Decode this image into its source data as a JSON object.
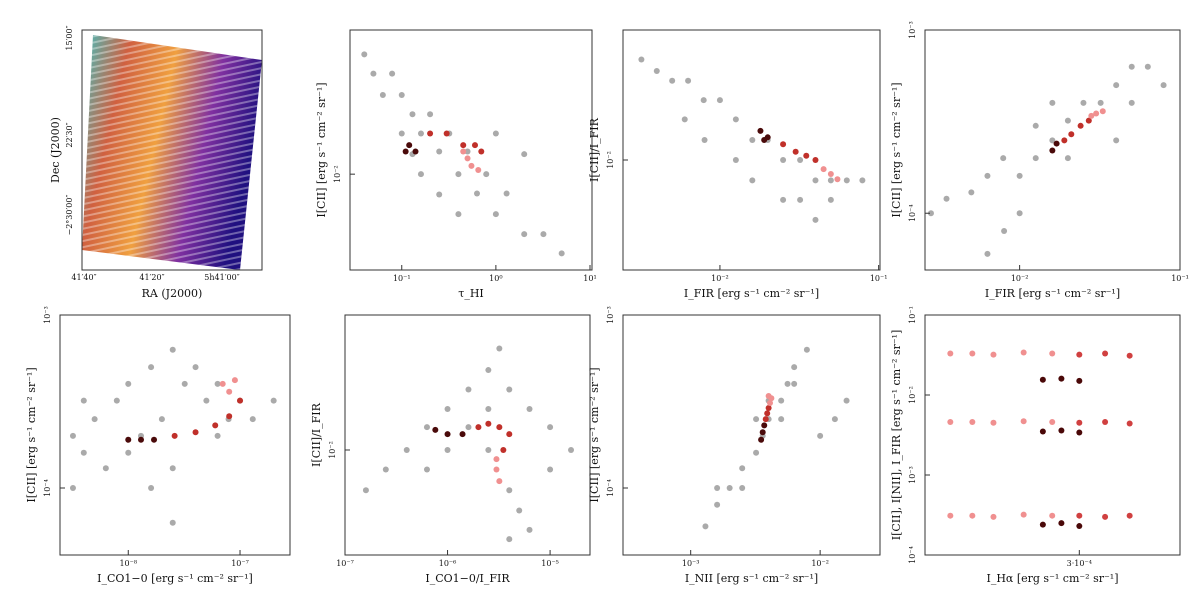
{
  "chart_data": [
    {
      "type": "image",
      "xlabel": "RA (J2000)",
      "ylabel": "Dec (J2000)",
      "xtick_labels": [
        "41′40″",
        "41′20″",
        "5h41′00″"
      ],
      "ytick_labels": [
        "15′00″",
        "22′30″",
        "−2°30′00″"
      ]
    },
    {
      "type": "scatter",
      "xlabel": "τ_HI",
      "ylabel": "I[CII] [erg s⁻¹ cm⁻² sr⁻¹]",
      "xscale": "log",
      "yscale": "log",
      "xlim": [
        0.0282,
        10.5
      ],
      "ylim": [
        0.0033,
        0.053
      ],
      "xticks": [
        {
          "value": 0.1,
          "label": "10⁻¹"
        },
        {
          "value": 1,
          "label": "10⁰"
        },
        {
          "value": 10,
          "label": "10¹"
        }
      ],
      "yticks": [
        {
          "value": 0.01,
          "label": "10⁻²"
        }
      ],
      "series": [
        {
          "color": "#aaaaaa",
          "x": [
            0.04,
            0.05,
            0.063,
            0.079,
            0.1,
            0.1,
            0.13,
            0.16,
            0.2,
            0.25,
            0.32,
            0.4,
            0.5,
            0.63,
            0.79,
            1,
            1.3,
            2,
            3.2,
            5,
            0.16,
            0.25,
            0.4,
            0.13,
            1,
            2
          ],
          "values": [
            0.04,
            0.032,
            0.025,
            0.032,
            0.025,
            0.016,
            0.02,
            0.016,
            0.02,
            0.013,
            0.016,
            0.01,
            0.013,
            0.008,
            0.01,
            0.0063,
            0.008,
            0.005,
            0.005,
            0.004,
            0.01,
            0.0079,
            0.0063,
            0.0126,
            0.016,
            0.0126
          ]
        },
        {
          "color": "#4a0a0a",
          "x": [
            0.11,
            0.12,
            0.14
          ],
          "values": [
            0.013,
            0.014,
            0.013
          ]
        },
        {
          "color": "#c0302a",
          "x": [
            0.2,
            0.3,
            0.45,
            0.6,
            0.7
          ],
          "values": [
            0.016,
            0.016,
            0.014,
            0.014,
            0.013
          ]
        },
        {
          "color": "#f09090",
          "x": [
            0.5,
            0.55,
            0.65,
            0.45
          ],
          "values": [
            0.012,
            0.011,
            0.0105,
            0.013
          ]
        }
      ]
    },
    {
      "type": "scatter",
      "xlabel": "I_FIR [erg s⁻¹ cm⁻² sr⁻¹]",
      "ylabel": "I[CII]/I_FIR",
      "xscale": "log",
      "yscale": "log",
      "xlim": [
        0.00245,
        0.102
      ],
      "ylim": [
        0.0028,
        0.045
      ],
      "xticks": [
        {
          "value": 0.01,
          "label": "10⁻²"
        },
        {
          "value": 0.1,
          "label": "10⁻¹"
        }
      ],
      "yticks": [
        {
          "value": 0.01,
          "label": "10⁻²"
        }
      ],
      "series": [
        {
          "color": "#aaaaaa",
          "x": [
            0.0032,
            0.004,
            0.005,
            0.0063,
            0.0079,
            0.01,
            0.0126,
            0.016,
            0.02,
            0.025,
            0.032,
            0.04,
            0.05,
            0.063,
            0.079,
            0.032,
            0.04,
            0.025,
            0.008,
            0.0126,
            0.016,
            0.006,
            0.05
          ],
          "values": [
            0.032,
            0.028,
            0.025,
            0.025,
            0.02,
            0.02,
            0.016,
            0.0126,
            0.0126,
            0.01,
            0.01,
            0.0079,
            0.0079,
            0.0079,
            0.0079,
            0.0063,
            0.005,
            0.0063,
            0.0126,
            0.01,
            0.0079,
            0.016,
            0.0063
          ]
        },
        {
          "color": "#4a0a0a",
          "x": [
            0.018,
            0.019,
            0.02
          ],
          "values": [
            0.014,
            0.0126,
            0.013
          ]
        },
        {
          "color": "#c0302a",
          "x": [
            0.025,
            0.03,
            0.035,
            0.04
          ],
          "values": [
            0.012,
            0.011,
            0.0105,
            0.01
          ]
        },
        {
          "color": "#f09090",
          "x": [
            0.045,
            0.05,
            0.055
          ],
          "values": [
            0.009,
            0.0085,
            0.008
          ]
        }
      ]
    },
    {
      "type": "scatter",
      "xlabel": "I_FIR [erg s⁻¹ cm⁻² sr⁻¹]",
      "ylabel": "I[CII] [erg s⁻¹ cm⁻² sr⁻¹]",
      "xscale": "log",
      "yscale": "log",
      "xlim": [
        0.00257,
        0.1
      ],
      "ylim": [
        4.9e-05,
        0.001
      ],
      "xticks": [
        {
          "value": 0.01,
          "label": "10⁻²"
        },
        {
          "value": 0.1,
          "label": "10⁻¹"
        }
      ],
      "yticks": [
        {
          "value": 0.001,
          "label": "10⁻³"
        },
        {
          "value": 0.0001,
          "label": "10⁻⁴"
        }
      ],
      "series": [
        {
          "color": "#aaaaaa",
          "x": [
            0.0028,
            0.0035,
            0.005,
            0.0063,
            0.0079,
            0.01,
            0.0126,
            0.016,
            0.02,
            0.025,
            0.032,
            0.04,
            0.05,
            0.063,
            0.079,
            0.008,
            0.01,
            0.0063,
            0.02,
            0.04,
            0.05,
            0.016,
            0.0126
          ],
          "values": [
            0.0001,
            0.00012,
            0.00013,
            0.00016,
            0.0002,
            0.00016,
            0.0002,
            0.00025,
            0.00032,
            0.0004,
            0.0004,
            0.0005,
            0.00063,
            0.00063,
            0.0005,
            8e-05,
            0.0001,
            6e-05,
            0.0002,
            0.00025,
            0.0004,
            0.0004,
            0.0003
          ]
        },
        {
          "color": "#4a0a0a",
          "x": [
            0.016,
            0.017
          ],
          "values": [
            0.00022,
            0.00024
          ]
        },
        {
          "color": "#c0302a",
          "x": [
            0.019,
            0.021,
            0.024,
            0.027
          ],
          "values": [
            0.00025,
            0.00027,
            0.0003,
            0.00032
          ]
        },
        {
          "color": "#f09090",
          "x": [
            0.03,
            0.033,
            0.028
          ],
          "values": [
            0.00035,
            0.00036,
            0.00034
          ]
        }
      ]
    },
    {
      "type": "scatter",
      "xlabel": "I_CO1−0 [erg s⁻¹ cm⁻² sr⁻¹]",
      "ylabel": "I[CII] [erg s⁻¹ cm⁻² sr⁻¹]",
      "xscale": "log",
      "yscale": "log",
      "xlim": [
        2.45e-09,
        2.8e-07
      ],
      "ylim": [
        4.1e-05,
        0.001
      ],
      "xticks": [
        {
          "value": 1e-08,
          "label": "10⁻⁸"
        },
        {
          "value": 1e-07,
          "label": "10⁻⁷"
        }
      ],
      "yticks": [
        {
          "value": 0.001,
          "label": "10⁻³"
        },
        {
          "value": 0.0001,
          "label": "10⁻⁴"
        }
      ],
      "series": [
        {
          "color": "#aaaaaa",
          "x": [
            3.2e-09,
            4e-09,
            5e-09,
            6.3e-09,
            7.9e-09,
            1e-08,
            1.3e-08,
            1.6e-08,
            2e-08,
            2.5e-08,
            3.2e-08,
            4e-08,
            5e-08,
            6.3e-08,
            7.9e-08,
            1e-07,
            1.3e-07,
            2e-07,
            2.5e-08,
            1.6e-08,
            2.5e-08,
            3.2e-09,
            1e-08,
            6.3e-08,
            4e-09
          ],
          "values": [
            0.0002,
            0.00016,
            0.00025,
            0.00013,
            0.00032,
            0.0004,
            0.0002,
            0.0005,
            0.00025,
            0.00063,
            0.0004,
            0.0005,
            0.00032,
            0.0004,
            0.00025,
            0.00032,
            0.00025,
            0.00032,
            0.00013,
            0.0001,
            6.3e-05,
            0.0001,
            0.00016,
            0.0002,
            0.00032
          ]
        },
        {
          "color": "#4a0a0a",
          "x": [
            1e-08,
            1.3e-08,
            1.7e-08
          ],
          "values": [
            0.00019,
            0.00019,
            0.00019
          ]
        },
        {
          "color": "#c0302a",
          "x": [
            2.6e-08,
            4e-08,
            6e-08,
            8e-08,
            1e-07
          ],
          "values": [
            0.0002,
            0.00021,
            0.00023,
            0.00026,
            0.00032
          ]
        },
        {
          "color": "#f09090",
          "x": [
            7e-08,
            8e-08,
            9e-08
          ],
          "values": [
            0.0004,
            0.00036,
            0.00042
          ]
        }
      ]
    },
    {
      "type": "scatter",
      "xlabel": "I_CO1−0/I_FIR",
      "ylabel": "I[CII]/I_FIR",
      "xscale": "log",
      "yscale": "log",
      "xlim": [
        1e-07,
        2.45e-05
      ],
      "ylim": [
        0.003,
        0.047
      ],
      "xticks": [
        {
          "value": 1e-07,
          "label": "10⁻⁷"
        },
        {
          "value": 1e-06,
          "label": "10⁻⁶"
        },
        {
          "value": 1e-05,
          "label": "10⁻⁵"
        }
      ],
      "yticks": [
        {
          "value": 0.01,
          "label": "10⁻²"
        }
      ],
      "series": [
        {
          "color": "#aaaaaa",
          "x": [
            1.6e-07,
            2.5e-07,
            4e-07,
            6.3e-07,
            1e-06,
            1.6e-06,
            2.5e-06,
            4e-06,
            6.3e-06,
            1e-05,
            1.6e-05,
            2.5e-06,
            4e-06,
            5e-06,
            6.3e-06,
            4e-06,
            1.6e-06,
            1e-06,
            6.3e-07,
            2.5e-06,
            1e-05,
            3.2e-06
          ],
          "values": [
            0.0063,
            0.008,
            0.01,
            0.013,
            0.016,
            0.02,
            0.025,
            0.02,
            0.016,
            0.013,
            0.01,
            0.01,
            0.0063,
            0.005,
            0.004,
            0.0036,
            0.013,
            0.01,
            0.008,
            0.016,
            0.008,
            0.032
          ]
        },
        {
          "color": "#4a0a0a",
          "x": [
            7.6e-07,
            1e-06,
            1.4e-06
          ],
          "values": [
            0.0126,
            0.012,
            0.012
          ]
        },
        {
          "color": "#c0302a",
          "x": [
            2e-06,
            2.5e-06,
            3.2e-06,
            4e-06,
            3.5e-06
          ],
          "values": [
            0.013,
            0.0135,
            0.013,
            0.012,
            0.01
          ]
        },
        {
          "color": "#f09090",
          "x": [
            3e-06,
            3e-06,
            3.2e-06
          ],
          "values": [
            0.009,
            0.008,
            0.007
          ]
        }
      ]
    },
    {
      "type": "scatter",
      "xlabel": "I_NII [erg s⁻¹ cm⁻² sr⁻¹]",
      "ylabel": "I[CII] [erg s⁻¹ cm⁻² sr⁻¹]",
      "xscale": "log",
      "yscale": "log",
      "xlim": [
        0.0003,
        0.029
      ],
      "ylim": [
        4.1e-05,
        0.001
      ],
      "xticks": [
        {
          "value": 0.001,
          "label": "10⁻³"
        },
        {
          "value": 0.01,
          "label": "10⁻²"
        }
      ],
      "yticks": [
        {
          "value": 0.001,
          "label": "10⁻³"
        },
        {
          "value": 0.0001,
          "label": "10⁻⁴"
        }
      ],
      "series": [
        {
          "color": "#aaaaaa",
          "x": [
            0.0013,
            0.0016,
            0.002,
            0.0025,
            0.0032,
            0.0036,
            0.004,
            0.005,
            0.0056,
            0.0063,
            0.0079,
            0.0032,
            0.004,
            0.005,
            0.0025,
            0.0016,
            0.0063,
            0.013,
            0.016,
            0.01
          ],
          "values": [
            6e-05,
            8e-05,
            0.0001,
            0.00013,
            0.00016,
            0.0002,
            0.00025,
            0.00032,
            0.0004,
            0.0005,
            0.00063,
            0.00025,
            0.00032,
            0.00025,
            0.0001,
            0.0001,
            0.0004,
            0.00025,
            0.00032,
            0.0002
          ]
        },
        {
          "color": "#4a0a0a",
          "x": [
            0.0035,
            0.0036,
            0.0037
          ],
          "values": [
            0.00019,
            0.00021,
            0.00023
          ]
        },
        {
          "color": "#c0302a",
          "x": [
            0.0038,
            0.0039,
            0.004
          ],
          "values": [
            0.00025,
            0.00027,
            0.00029
          ]
        },
        {
          "color": "#f09090",
          "x": [
            0.0041,
            0.0042,
            0.004
          ],
          "values": [
            0.00031,
            0.00033,
            0.00034
          ]
        }
      ]
    },
    {
      "type": "scatter",
      "xlabel": "I_Hα [erg s⁻¹ cm⁻² sr⁻¹]",
      "ylabel": "I[CII], I[NII], I_FIR [erg s⁻¹ cm⁻² sr⁻¹]",
      "xscale": "log",
      "yscale": "log",
      "xlim": [
        0.000224,
        0.000363
      ],
      "ylim": [
        0.0001,
        0.1
      ],
      "xticks": [
        {
          "value": 0.0003,
          "label": "3·10⁻⁴"
        }
      ],
      "yticks": [
        {
          "value": 0.1,
          "label": "10⁻¹"
        },
        {
          "value": 0.01,
          "label": "10⁻²"
        },
        {
          "value": 0.001,
          "label": "10⁻³"
        },
        {
          "value": 0.0001,
          "label": "10⁻⁴"
        }
      ],
      "series": [
        {
          "color": "#f09090",
          "x": [
            0.000235,
            0.000245,
            0.000255,
            0.00027,
            0.000285,
            0.000235,
            0.000245,
            0.000255,
            0.00027,
            0.000285,
            0.000235,
            0.000245,
            0.000255,
            0.00027,
            0.000285
          ],
          "values": [
            0.033,
            0.033,
            0.032,
            0.034,
            0.033,
            0.0046,
            0.0046,
            0.0045,
            0.0047,
            0.0046,
            0.00031,
            0.00031,
            0.0003,
            0.00032,
            0.00031
          ]
        },
        {
          "color": "#d04040",
          "x": [
            0.0003,
            0.000315,
            0.00033,
            0.0003,
            0.000315,
            0.00033,
            0.0003,
            0.000315,
            0.00033
          ],
          "values": [
            0.032,
            0.033,
            0.031,
            0.0045,
            0.0046,
            0.0044,
            0.00031,
            0.0003,
            0.00031
          ]
        },
        {
          "color": "#4a0808",
          "x": [
            0.00028,
            0.00029,
            0.0003,
            0.00028,
            0.00029,
            0.0003,
            0.00028,
            0.00029,
            0.0003
          ],
          "values": [
            0.0155,
            0.016,
            0.015,
            0.0035,
            0.0036,
            0.0034,
            0.00024,
            0.00025,
            0.00023
          ]
        }
      ]
    }
  ]
}
